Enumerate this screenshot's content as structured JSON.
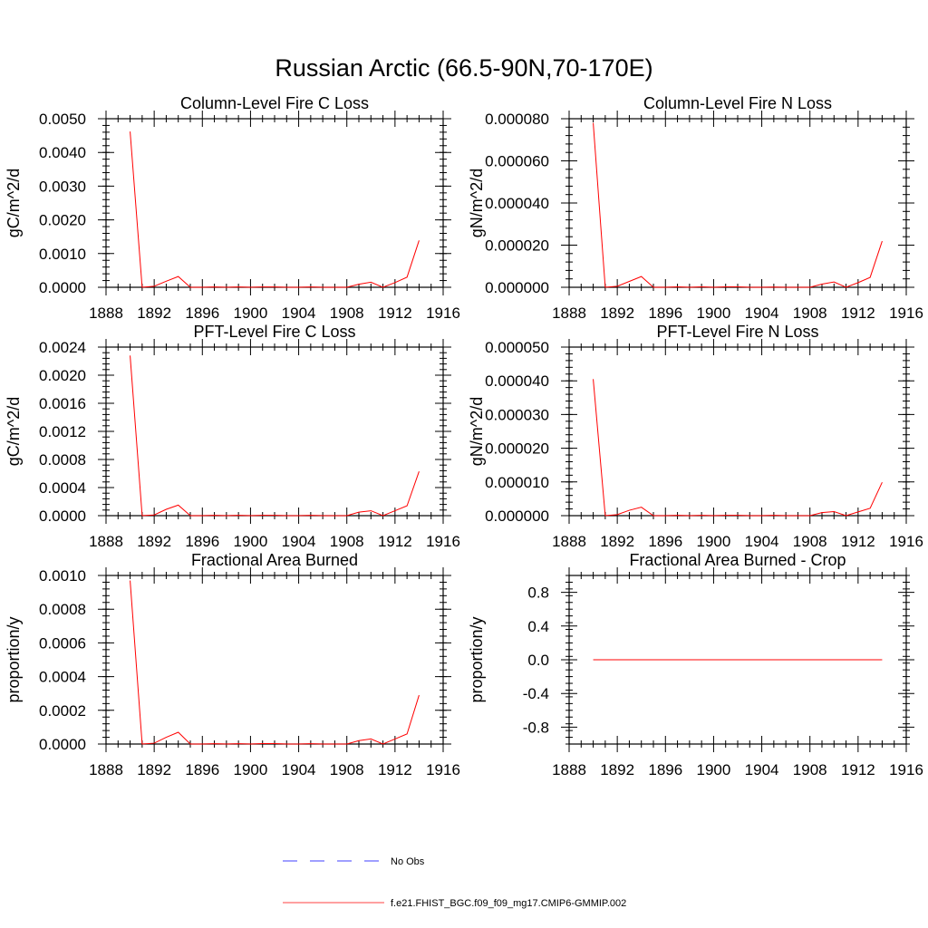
{
  "figure_title": "Russian Arctic (66.5-90N,70-170E)",
  "colors": {
    "model": "#ff0000",
    "obs": "#0000ff",
    "axis": "#000000"
  },
  "legend": {
    "entries": [
      {
        "label": "No Obs",
        "style": "dashed",
        "color": "#0000ff"
      },
      {
        "label": "f.e21.FHIST_BGC.f09_f09_mg17.CMIP6-GMMIP.002",
        "style": "solid",
        "color": "#ff0000"
      }
    ]
  },
  "chart_data": [
    {
      "type": "line",
      "title": "Column-Level Fire C Loss",
      "ylabel": "gC/m^2/d",
      "xlabel": "",
      "xlim": [
        1888,
        1916
      ],
      "ylim": [
        0,
        0.005
      ],
      "xticks": [
        "1888",
        "1892",
        "1896",
        "1900",
        "1904",
        "1908",
        "1912",
        "1916"
      ],
      "yticks": [
        "0.0000",
        "0.0010",
        "0.0020",
        "0.0030",
        "0.0040",
        "0.0050"
      ],
      "x": [
        1890,
        1891,
        1892,
        1893,
        1894,
        1895,
        1896,
        1897,
        1898,
        1899,
        1900,
        1901,
        1902,
        1903,
        1904,
        1905,
        1906,
        1907,
        1908,
        1909,
        1910,
        1911,
        1912,
        1913,
        1914
      ],
      "series": [
        {
          "name": "f.e21.FHIST_BGC.f09_f09_mg17.CMIP6-GMMIP.002",
          "color": "#ff0000",
          "values": [
            0.00462,
            0.0,
            3e-05,
            0.00018,
            0.00032,
            0.0,
            0.0,
            1e-05,
            0.0,
            1e-05,
            0.0,
            1e-05,
            1e-05,
            0.0,
            0.0,
            1e-05,
            0.0,
            0.0,
            0.0,
            9e-05,
            0.00015,
            0.0,
            0.00014,
            0.0003,
            0.00139
          ]
        }
      ]
    },
    {
      "type": "line",
      "title": "Column-Level Fire N Loss",
      "ylabel": "gN/m^2/d",
      "xlabel": "",
      "xlim": [
        1888,
        1916
      ],
      "ylim": [
        0,
        8e-05
      ],
      "xticks": [
        "1888",
        "1892",
        "1896",
        "1900",
        "1904",
        "1908",
        "1912",
        "1916"
      ],
      "yticks": [
        "0.000000",
        "0.000020",
        "0.000040",
        "0.000060",
        "0.000080"
      ],
      "x": [
        1890,
        1891,
        1892,
        1893,
        1894,
        1895,
        1896,
        1897,
        1898,
        1899,
        1900,
        1901,
        1902,
        1903,
        1904,
        1905,
        1906,
        1907,
        1908,
        1909,
        1910,
        1911,
        1912,
        1913,
        1914
      ],
      "series": [
        {
          "name": "f.e21.FHIST_BGC.f09_f09_mg17.CMIP6-GMMIP.002",
          "color": "#ff0000",
          "values": [
            7.8e-05,
            0.0,
            5e-07,
            2.8e-06,
            5.1e-06,
            0.0,
            0.0,
            2e-07,
            0.0,
            2e-07,
            0.0,
            2e-07,
            2e-07,
            0.0,
            0.0,
            1e-07,
            0.0,
            0.0,
            0.0,
            1.5e-06,
            2.5e-06,
            0.0,
            2.2e-06,
            4.7e-06,
            2.19e-05
          ]
        }
      ]
    },
    {
      "type": "line",
      "title": "PFT-Level Fire C Loss",
      "ylabel": "gC/m^2/d",
      "xlabel": "",
      "xlim": [
        1888,
        1916
      ],
      "ylim": [
        0,
        0.0024
      ],
      "xticks": [
        "1888",
        "1892",
        "1896",
        "1900",
        "1904",
        "1908",
        "1912",
        "1916"
      ],
      "yticks": [
        "0.0000",
        "0.0004",
        "0.0008",
        "0.0012",
        "0.0016",
        "0.0020",
        "0.0024"
      ],
      "x": [
        1890,
        1891,
        1892,
        1893,
        1894,
        1895,
        1896,
        1897,
        1898,
        1899,
        1900,
        1901,
        1902,
        1903,
        1904,
        1905,
        1906,
        1907,
        1908,
        1909,
        1910,
        1911,
        1912,
        1913,
        1914
      ],
      "series": [
        {
          "name": "f.e21.FHIST_BGC.f09_f09_mg17.CMIP6-GMMIP.002",
          "color": "#ff0000",
          "values": [
            0.00228,
            0.0,
            1e-05,
            9e-05,
            0.00015,
            0.0,
            0.0,
            5e-06,
            0.0,
            5e-06,
            0.0,
            5e-06,
            5e-06,
            0.0,
            0.0,
            5e-06,
            0.0,
            0.0,
            0.0,
            5e-05,
            7e-05,
            0.0,
            7e-05,
            0.00014,
            0.00063
          ]
        }
      ]
    },
    {
      "type": "line",
      "title": "PFT-Level Fire N Loss",
      "ylabel": "gN/m^2/d",
      "xlabel": "",
      "xlim": [
        1888,
        1916
      ],
      "ylim": [
        0,
        5e-05
      ],
      "xticks": [
        "1888",
        "1892",
        "1896",
        "1900",
        "1904",
        "1908",
        "1912",
        "1916"
      ],
      "yticks": [
        "0.000000",
        "0.000010",
        "0.000020",
        "0.000030",
        "0.000040",
        "0.000050"
      ],
      "x": [
        1890,
        1891,
        1892,
        1893,
        1894,
        1895,
        1896,
        1897,
        1898,
        1899,
        1900,
        1901,
        1902,
        1903,
        1904,
        1905,
        1906,
        1907,
        1908,
        1909,
        1910,
        1911,
        1912,
        1913,
        1914
      ],
      "series": [
        {
          "name": "f.e21.FHIST_BGC.f09_f09_mg17.CMIP6-GMMIP.002",
          "color": "#ff0000",
          "values": [
            4.05e-05,
            0.0,
            3e-07,
            1.6e-06,
            2.5e-06,
            0.0,
            0.0,
            1e-07,
            0.0,
            1e-07,
            0.0,
            1e-07,
            1e-07,
            0.0,
            0.0,
            1e-07,
            0.0,
            0.0,
            0.0,
            9e-07,
            1.2e-06,
            0.0,
            1.1e-06,
            2.2e-06,
            9.9e-06
          ]
        }
      ]
    },
    {
      "type": "line",
      "title": "Fractional Area Burned",
      "ylabel": "proportion/y",
      "xlabel": "",
      "xlim": [
        1888,
        1916
      ],
      "ylim": [
        0,
        0.001
      ],
      "xticks": [
        "1888",
        "1892",
        "1896",
        "1900",
        "1904",
        "1908",
        "1912",
        "1916"
      ],
      "yticks": [
        "0.0000",
        "0.0002",
        "0.0004",
        "0.0006",
        "0.0008",
        "0.0010"
      ],
      "x": [
        1890,
        1891,
        1892,
        1893,
        1894,
        1895,
        1896,
        1897,
        1898,
        1899,
        1900,
        1901,
        1902,
        1903,
        1904,
        1905,
        1906,
        1907,
        1908,
        1909,
        1910,
        1911,
        1912,
        1913,
        1914
      ],
      "series": [
        {
          "name": "f.e21.FHIST_BGC.f09_f09_mg17.CMIP6-GMMIP.002",
          "color": "#ff0000",
          "values": [
            0.00097,
            0.0,
            5e-06,
            4e-05,
            7e-05,
            0.0,
            0.0,
            2e-06,
            0.0,
            2e-06,
            0.0,
            3e-06,
            3e-06,
            0.0,
            0.0,
            2e-06,
            0.0,
            0.0,
            0.0,
            2e-05,
            3e-05,
            0.0,
            3e-05,
            6e-05,
            0.00029
          ]
        }
      ]
    },
    {
      "type": "line",
      "title": "Fractional Area Burned - Crop",
      "ylabel": "proportion/y",
      "xlabel": "",
      "xlim": [
        1888,
        1916
      ],
      "ylim": [
        -1,
        1
      ],
      "xticks": [
        "1888",
        "1892",
        "1896",
        "1900",
        "1904",
        "1908",
        "1912",
        "1916"
      ],
      "yticks": [
        "-0.8",
        "-0.4",
        "0.0",
        "0.4",
        "0.8"
      ],
      "x": [
        1890,
        1891,
        1892,
        1893,
        1894,
        1895,
        1896,
        1897,
        1898,
        1899,
        1900,
        1901,
        1902,
        1903,
        1904,
        1905,
        1906,
        1907,
        1908,
        1909,
        1910,
        1911,
        1912,
        1913,
        1914
      ],
      "series": [
        {
          "name": "f.e21.FHIST_BGC.f09_f09_mg17.CMIP6-GMMIP.002",
          "color": "#ff0000",
          "values": [
            0,
            0,
            0,
            0,
            0,
            0,
            0,
            0,
            0,
            0,
            0,
            0,
            0,
            0,
            0,
            0,
            0,
            0,
            0,
            0,
            0,
            0,
            0,
            0,
            0
          ]
        }
      ]
    }
  ]
}
